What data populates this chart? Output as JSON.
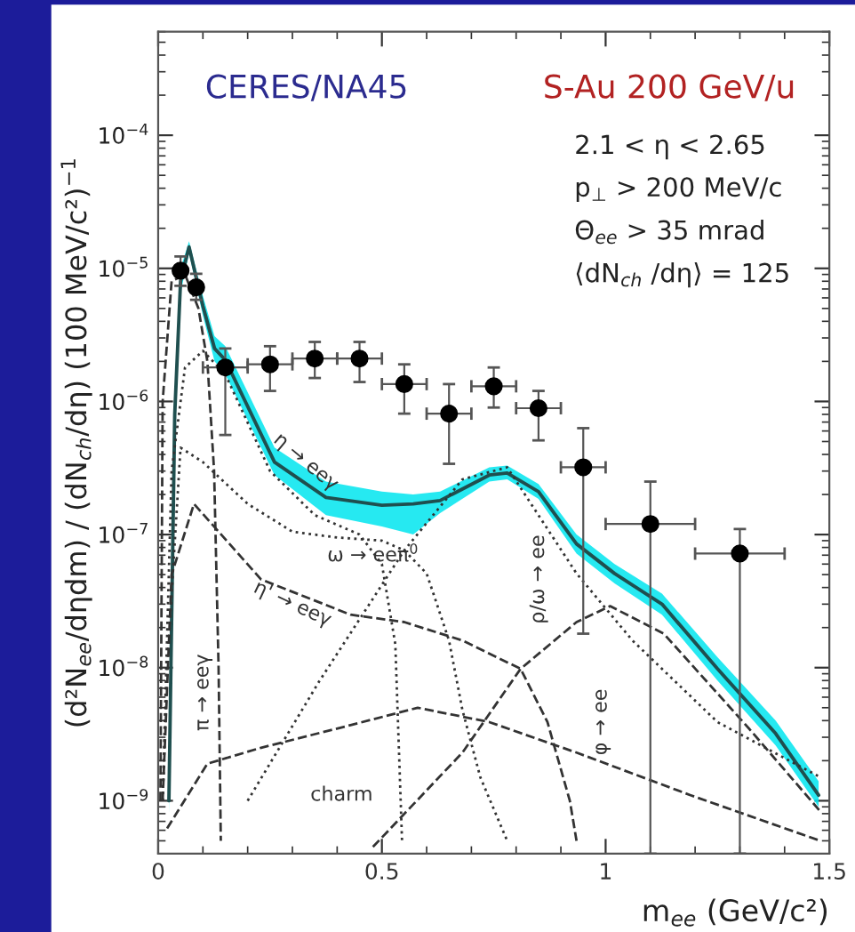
{
  "chart_data": {
    "type": "line",
    "xlabel": "m$_{ee}$ (GeV/c²)",
    "ylabel": "(d²N$_{ee}$/dηdm) / (dN$_{ch}$/dη) (100 MeV/c²)$^{−1}$",
    "xlim": [
      0,
      1.5
    ],
    "xticks": [
      0,
      0.5,
      1,
      1.5
    ],
    "ylim": [
      4e-10,
      0.0006
    ],
    "yticks": [
      {
        "value": 1e-09,
        "label": "10$^{−9}$"
      },
      {
        "value": 1e-08,
        "label": "10$^{−8}$"
      },
      {
        "value": 1e-07,
        "label": "10$^{−7}$"
      },
      {
        "value": 1e-06,
        "label": "10$^{−6}$"
      },
      {
        "value": 1e-05,
        "label": "10$^{−5}$"
      },
      {
        "value": 0.0001,
        "label": "10$^{−4}$"
      }
    ],
    "log": "y",
    "grid": false,
    "legend": false,
    "annotations": [
      "CERES/NA45",
      "S-Au 200 GeV/u",
      "2.1 < η < 2.65",
      "p$_{⊥}$ > 200 MeV/c",
      "Θ$_{ee}$ > 35 mrad",
      "⟨dN$_{ch}$ /dη⟩ = 125",
      "η → eeγ",
      "ω → eeπ$^{0}$",
      "η' → eeγ",
      "π → eeγ",
      "ρ/ω → ee",
      "φ → ee",
      "charm"
    ],
    "series": [
      {
        "type": "line",
        "color": "#1f4f4f",
        "line_style": "solid",
        "marker": "none",
        "x": [
          0.024,
          0.037,
          0.05,
          0.069,
          0.1,
          0.126,
          0.15,
          0.26,
          0.375,
          0.5,
          0.57,
          0.63,
          0.74,
          0.78,
          0.85,
          0.935,
          1.02,
          1.126,
          1.25,
          1.38,
          1.476
        ],
        "values": [
          1e-09,
          8e-07,
          8e-06,
          1.45e-05,
          5.2e-06,
          2.5e-06,
          2.05e-06,
          3.5e-07,
          1.9e-07,
          1.66e-07,
          1.7e-07,
          1.8e-07,
          2.8e-07,
          2.9e-07,
          2.1e-07,
          8.5e-08,
          5.1e-08,
          3e-08,
          9.8e-09,
          3.2e-09,
          1.1e-09
        ],
        "upper": [
          1.3e-09,
          1e-06,
          1e-05,
          1.6e-05,
          6.2e-06,
          3.1e-06,
          2.6e-06,
          4.5e-07,
          2.5e-07,
          2.1e-07,
          2e-07,
          2.1e-07,
          3.2e-07,
          3.3e-07,
          2.4e-07,
          1e-07,
          6e-08,
          3.6e-08,
          1.2e-08,
          4e-09,
          1.4e-09
        ],
        "lower": [
          8e-10,
          6.5e-07,
          6.5e-06,
          1.3e-05,
          4.4e-06,
          2e-06,
          1.6e-06,
          2.8e-07,
          1.4e-07,
          1.15e-07,
          1e-07,
          1.45e-07,
          2.5e-07,
          2.6e-07,
          1.85e-07,
          7.2e-08,
          4.3e-08,
          2.5e-08,
          8e-09,
          2.6e-09,
          9e-10
        ]
      },
      {
        "type": "line",
        "color": "#333333",
        "line_style": "dotted",
        "marker": "none",
        "x": [
          0.01,
          0.03,
          0.06,
          0.1,
          0.15,
          0.25,
          0.35,
          0.45,
          0.5,
          0.53,
          0.545
        ],
        "values": [
          1e-09,
          3e-07,
          1.8e-06,
          2.4e-06,
          1.6e-06,
          3e-07,
          1.4e-07,
          1e-07,
          6e-08,
          1.5e-08,
          5e-10
        ]
      },
      {
        "type": "line",
        "color": "#333333",
        "line_style": "dotted",
        "marker": "none",
        "x": [
          0.01,
          0.02,
          0.05,
          0.1,
          0.2,
          0.3,
          0.4,
          0.5,
          0.55,
          0.6,
          0.65,
          0.68,
          0.72,
          0.78
        ],
        "values": [
          1e-09,
          1e-08,
          4.5e-07,
          3.5e-07,
          1.7e-07,
          1.05e-07,
          9.5e-08,
          9e-08,
          7.6e-08,
          5.1e-08,
          1.6e-08,
          4.8e-09,
          1.5e-09,
          5e-10
        ]
      },
      {
        "type": "line",
        "color": "#333333",
        "line_style": "dashed",
        "marker": "none",
        "x": [
          0.01,
          0.03,
          0.08,
          0.23,
          0.43,
          0.55,
          0.68,
          0.81,
          0.87,
          0.92,
          0.935
        ],
        "values": [
          1e-09,
          5e-08,
          1.7e-07,
          4.6e-08,
          2.5e-08,
          2.2e-08,
          1.6e-08,
          9.8e-09,
          3.9e-09,
          1e-09,
          5e-10
        ]
      },
      {
        "type": "line",
        "color": "#333333",
        "line_style": "dashed",
        "marker": "none",
        "x": [
          0.005,
          0.01,
          0.03,
          0.06,
          0.09,
          0.11,
          0.125,
          0.135,
          0.14
        ],
        "values": [
          1e-09,
          1e-06,
          8e-06,
          9e-06,
          5e-06,
          2e-06,
          3e-07,
          1e-08,
          5e-10
        ]
      },
      {
        "type": "line",
        "color": "#333333",
        "line_style": "dotted",
        "marker": "none",
        "x": [
          0.2,
          0.36,
          0.55,
          0.68,
          0.78,
          0.935,
          1.06,
          1.25,
          1.48
        ],
        "values": [
          1e-09,
          7.9e-09,
          7.6e-08,
          2.6e-07,
          3.2e-07,
          5.1e-08,
          1.6e-08,
          3.9e-09,
          1.5e-09
        ]
      },
      {
        "type": "line",
        "color": "#333333",
        "line_style": "dashed",
        "marker": "none",
        "x": [
          0.48,
          0.68,
          0.81,
          0.935,
          1.01,
          1.13,
          1.32,
          1.48
        ],
        "values": [
          4.5e-10,
          2.3e-09,
          9.8e-09,
          2.2e-08,
          2.9e-08,
          1.8e-08,
          3.5e-09,
          8.3e-10
        ]
      },
      {
        "type": "line",
        "color": "#333333",
        "line_style": "dashed",
        "marker": "none",
        "x": [
          0.02,
          0.11,
          0.23,
          0.43,
          0.58,
          0.74,
          0.935,
          1.19,
          1.48
        ],
        "values": [
          6.2e-10,
          1.9e-09,
          2.5e-09,
          3.7e-09,
          5e-09,
          3.9e-09,
          2.3e-09,
          1.1e-09,
          5e-10
        ]
      },
      {
        "type": "scatter",
        "color": "#000000",
        "marker": "circle",
        "x": [
          0.05,
          0.085,
          0.15,
          0.25,
          0.35,
          0.45,
          0.55,
          0.65,
          0.75,
          0.85,
          0.95,
          1.1,
          1.3
        ],
        "values": [
          9.6e-06,
          7.2e-06,
          1.8e-06,
          1.9e-06,
          2.1e-06,
          2.1e-06,
          1.35e-06,
          8.1e-07,
          1.3e-06,
          8.9e-07,
          3.2e-07,
          1.2e-07,
          7.2e-08
        ],
        "errors": [
          [
            7.4e-06,
            1.23e-05
          ],
          [
            5.8e-06,
            9.1e-06
          ],
          [
            5.6e-07,
            2.5e-06
          ],
          [
            1.2e-06,
            2.6e-06
          ],
          [
            1.5e-06,
            2.8e-06
          ],
          [
            1.4e-06,
            2.8e-06
          ],
          [
            8.1e-07,
            1.9e-06
          ],
          [
            3.4e-07,
            1.35e-06
          ],
          [
            9e-07,
            1.8e-06
          ],
          [
            5.1e-07,
            1.2e-06
          ],
          [
            1.8e-08,
            6.3e-07
          ],
          [
            4e-10,
            2.5e-07
          ],
          [
            4e-10,
            1.1e-07
          ]
        ],
        "xerrors": [
          null,
          null,
          0.05,
          0.05,
          0.05,
          0.05,
          0.05,
          0.05,
          0.05,
          0.05,
          0.05,
          0.1,
          0.1
        ]
      }
    ]
  }
}
